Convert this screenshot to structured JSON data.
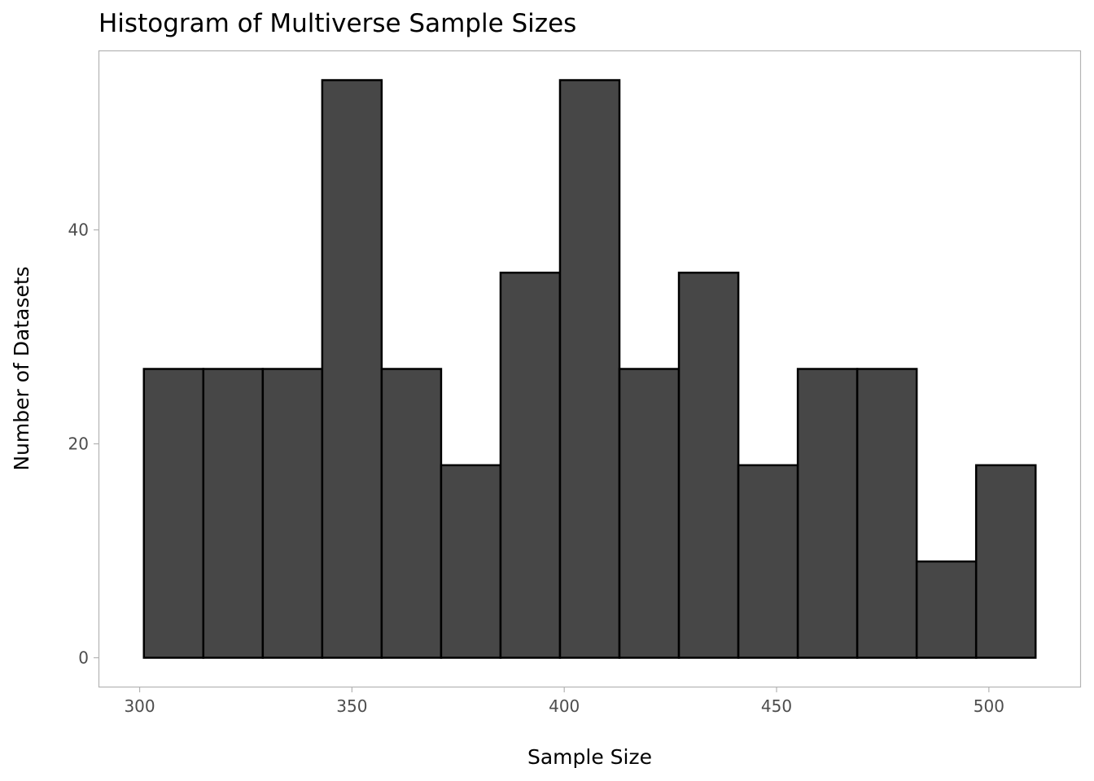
{
  "chart_data": {
    "type": "bar",
    "title": "Histogram of Multiverse Sample Sizes",
    "xlabel": "Sample Size",
    "ylabel": "Number of Datasets",
    "bins": [
      {
        "start": 301,
        "end": 315,
        "count": 27
      },
      {
        "start": 315,
        "end": 329,
        "count": 27
      },
      {
        "start": 329,
        "end": 343,
        "count": 27
      },
      {
        "start": 343,
        "end": 357,
        "count": 54
      },
      {
        "start": 357,
        "end": 371,
        "count": 27
      },
      {
        "start": 371,
        "end": 385,
        "count": 18
      },
      {
        "start": 385,
        "end": 399,
        "count": 36
      },
      {
        "start": 399,
        "end": 413,
        "count": 54
      },
      {
        "start": 413,
        "end": 427,
        "count": 27
      },
      {
        "start": 427,
        "end": 441,
        "count": 36
      },
      {
        "start": 441,
        "end": 455,
        "count": 18
      },
      {
        "start": 455,
        "end": 469,
        "count": 27
      },
      {
        "start": 469,
        "end": 483,
        "count": 27
      },
      {
        "start": 483,
        "end": 497,
        "count": 9
      },
      {
        "start": 497,
        "end": 511,
        "count": 18
      }
    ],
    "xlim": [
      290.5,
      521.5
    ],
    "ylim": [
      -2.7,
      56.7
    ],
    "xticks": [
      300,
      350,
      400,
      450,
      500
    ],
    "yticks": [
      0,
      20,
      40
    ],
    "grid": false,
    "legend": "none",
    "colors": {
      "bar_fill": "#474747",
      "bar_outline": "#000000",
      "panel_border": "#b3b3b3",
      "tick_text": "#4d4d4d"
    }
  }
}
